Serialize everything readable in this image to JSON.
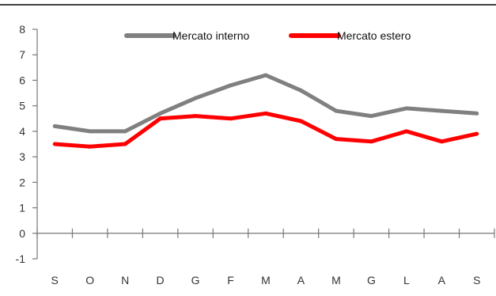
{
  "chart_data": {
    "type": "line",
    "title": "",
    "xlabel": "",
    "ylabel": "",
    "categories": [
      "S",
      "O",
      "N",
      "D",
      "G",
      "F",
      "M",
      "A",
      "M",
      "G",
      "L",
      "A",
      "S"
    ],
    "series": [
      {
        "name": "Mercato interno",
        "color": "#808080",
        "values": [
          4.2,
          4.0,
          4.0,
          4.7,
          5.3,
          5.8,
          6.2,
          5.6,
          4.8,
          4.6,
          4.9,
          4.8,
          4.7
        ]
      },
      {
        "name": "Mercato estero",
        "color": "#ff0000",
        "values": [
          3.5,
          3.4,
          3.5,
          4.5,
          4.6,
          4.5,
          4.7,
          4.4,
          3.7,
          3.6,
          4.0,
          3.6,
          3.9
        ]
      }
    ],
    "ylim": [
      -1,
      8
    ],
    "yticks": [
      -1,
      0,
      1,
      2,
      3,
      4,
      5,
      6,
      7,
      8
    ],
    "grid": false,
    "legend_position": "top-center"
  }
}
